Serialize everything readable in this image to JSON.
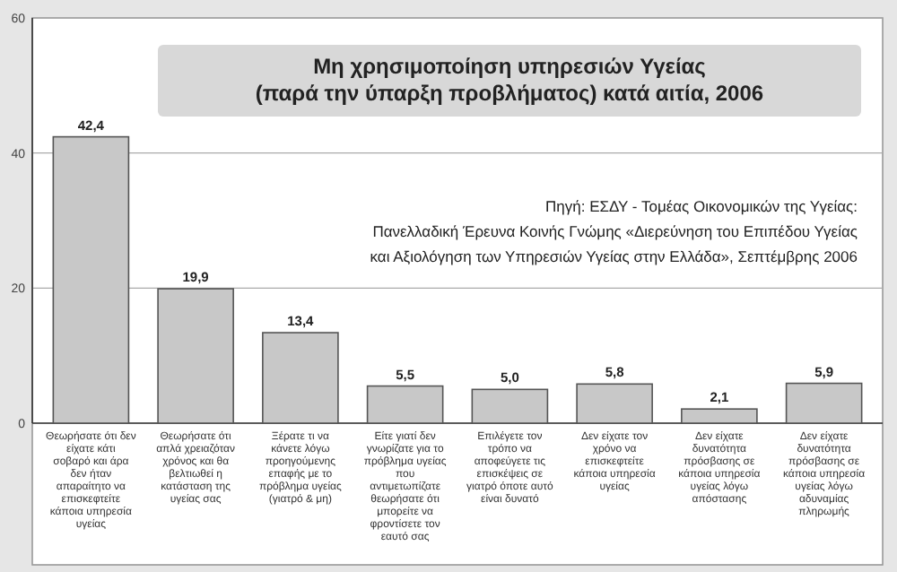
{
  "chart_data": {
    "type": "bar",
    "title": "Μη χρησιμοποίηση υπηρεσιών Υγείας\n(παρά την ύπαρξη προβλήματος) κατά αιτία, 2006",
    "categories": [
      "Θεωρήσατε ότι δεν είχατε κάτι σοβαρό και άρα δεν ήταν απαραίτητο να επισκεφτείτε κάποια υπηρεσία υγείας",
      "Θεωρήσατε ότι απλά χρειαζόταν χρόνος και θα βελτιωθεί η κατάσταση της υγείας σας",
      "Ξέρατε τι να κάνετε λόγω προηγούμενης επαφής με το πρόβλημα υγείας (γιατρό & μη)",
      "Είτε γιατί δεν γνωρίζατε για το πρόβλημα υγείας που αντιμετωπίζατε θεωρήσατε ότι μπορείτε να φροντίσετε τον εαυτό σας",
      "Επιλέγετε τον τρόπο να αποφεύγετε τις επισκέψεις σε γιατρό όποτε αυτό είναι δυνατό",
      "Δεν είχατε τον χρόνο να επισκεφτείτε κάποια υπηρεσία υγείας",
      "Δεν είχατε δυνατότητα πρόσβασης σε κάποια υπηρεσία υγείας λόγω απόστασης",
      "Δεν είχατε δυνατότητα πρόσβασης σε κάποια υπηρεσία υγείας λόγω αδυναμίας πληρωμής"
    ],
    "values": [
      42.4,
      19.9,
      13.4,
      5.5,
      5.0,
      5.8,
      2.1,
      5.9
    ],
    "value_labels": [
      "42,4",
      "19,9",
      "13,4",
      "5,5",
      "5,0",
      "5,8",
      "2,1",
      "5,9"
    ],
    "color": "#c8c8c8",
    "ylim": [
      0,
      60
    ],
    "yticks": [
      0,
      20,
      40,
      60
    ],
    "grid": "y",
    "annotations": [
      "Πηγή: ΕΣΔΥ - Τομέας Οικονομικών της Υγείας:",
      "Πανελλαδική Έρευνα Κοινής Γνώμης «Διερεύνηση του Επιπέδου Υγείας",
      "και Αξιολόγηση των Υπηρεσιών Υγείας στην Ελλάδα», Σεπτέμβρης 2006"
    ]
  }
}
